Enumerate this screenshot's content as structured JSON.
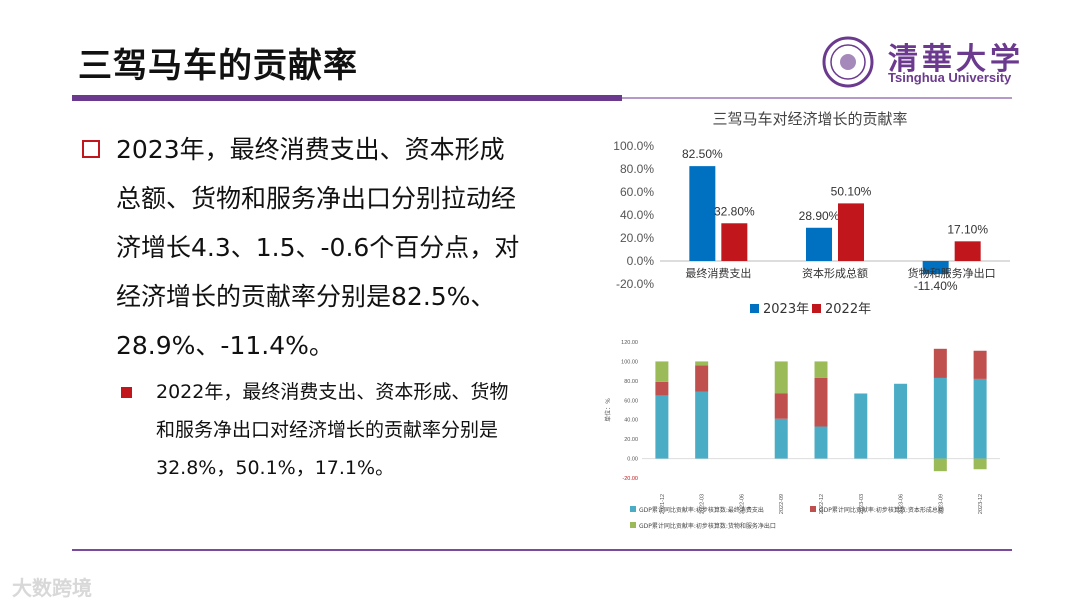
{
  "slide": {
    "title": "三驾马车的贡献率"
  },
  "logo": {
    "cn": "清華大学",
    "en": "Tsinghua University"
  },
  "bullets": {
    "main": "2023年，最终消费支出、资本形成总额、货物和服务净出口分别拉动经济增长4.3、1.5、-0.6个百分点，对经济增长的贡献率分别是82.5%、28.9%、-11.4%。",
    "sub": "2022年，最终消费支出、资本形成、货物和服务净出口对经济增长的贡献率分别是32.8%，50.1%，17.1%。"
  },
  "watermark": "大数跨境",
  "colors": {
    "accent": "#6b3a8e",
    "red": "#c0161c",
    "blue": "#0070c0"
  },
  "chart_data": [
    {
      "type": "bar",
      "title": "三驾马车对经济增长的贡献率",
      "categories": [
        "最终消费支出",
        "资本形成总额",
        "货物和服务净出口"
      ],
      "series": [
        {
          "name": "2023年",
          "color": "#0070c0",
          "values": [
            82.5,
            28.9,
            -11.4
          ],
          "labels": [
            "82.50%",
            "28.90%",
            "-11.40%"
          ]
        },
        {
          "name": "2022年",
          "color": "#c0161c",
          "values": [
            32.8,
            50.1,
            17.1
          ],
          "labels": [
            "32.80%",
            "50.10%",
            "17.10%"
          ]
        }
      ],
      "ylim": [
        -20,
        100
      ],
      "yticks": [
        "-20.0%",
        "0.0%",
        "20.0%",
        "40.0%",
        "60.0%",
        "80.0%",
        "100.0%"
      ],
      "legend": "bottom"
    },
    {
      "type": "bar",
      "stacked": true,
      "ylabel": "单位：%",
      "categories": [
        "2021-12",
        "2022-03",
        "2022-06",
        "2022-09",
        "2022-12",
        "2023-03",
        "2023-06",
        "2023-09",
        "2023-12"
      ],
      "series": [
        {
          "name": "GDP累计同比贡献率:初步核算数:最终消费支出",
          "color": "#4bacc6",
          "values": [
            65,
            69,
            0,
            41,
            33,
            67,
            77,
            83,
            82
          ]
        },
        {
          "name": "GDP累计同比贡献率:初步核算数:资本形成总额",
          "color": "#c0504d",
          "values": [
            14,
            27,
            0,
            26,
            50,
            0,
            0,
            30,
            29
          ]
        },
        {
          "name": "GDP累计同比贡献率:初步核算数:货物和服务净出口",
          "color": "#9bbb59",
          "values": [
            21,
            4,
            0,
            33,
            17,
            0,
            0,
            -13,
            -11
          ]
        }
      ],
      "ylim": [
        -20,
        120
      ],
      "yticks": [
        "-20.00",
        "0.00",
        "20.00",
        "40.00",
        "60.00",
        "80.00",
        "100.00",
        "120.00"
      ],
      "legend": "bottom"
    }
  ]
}
